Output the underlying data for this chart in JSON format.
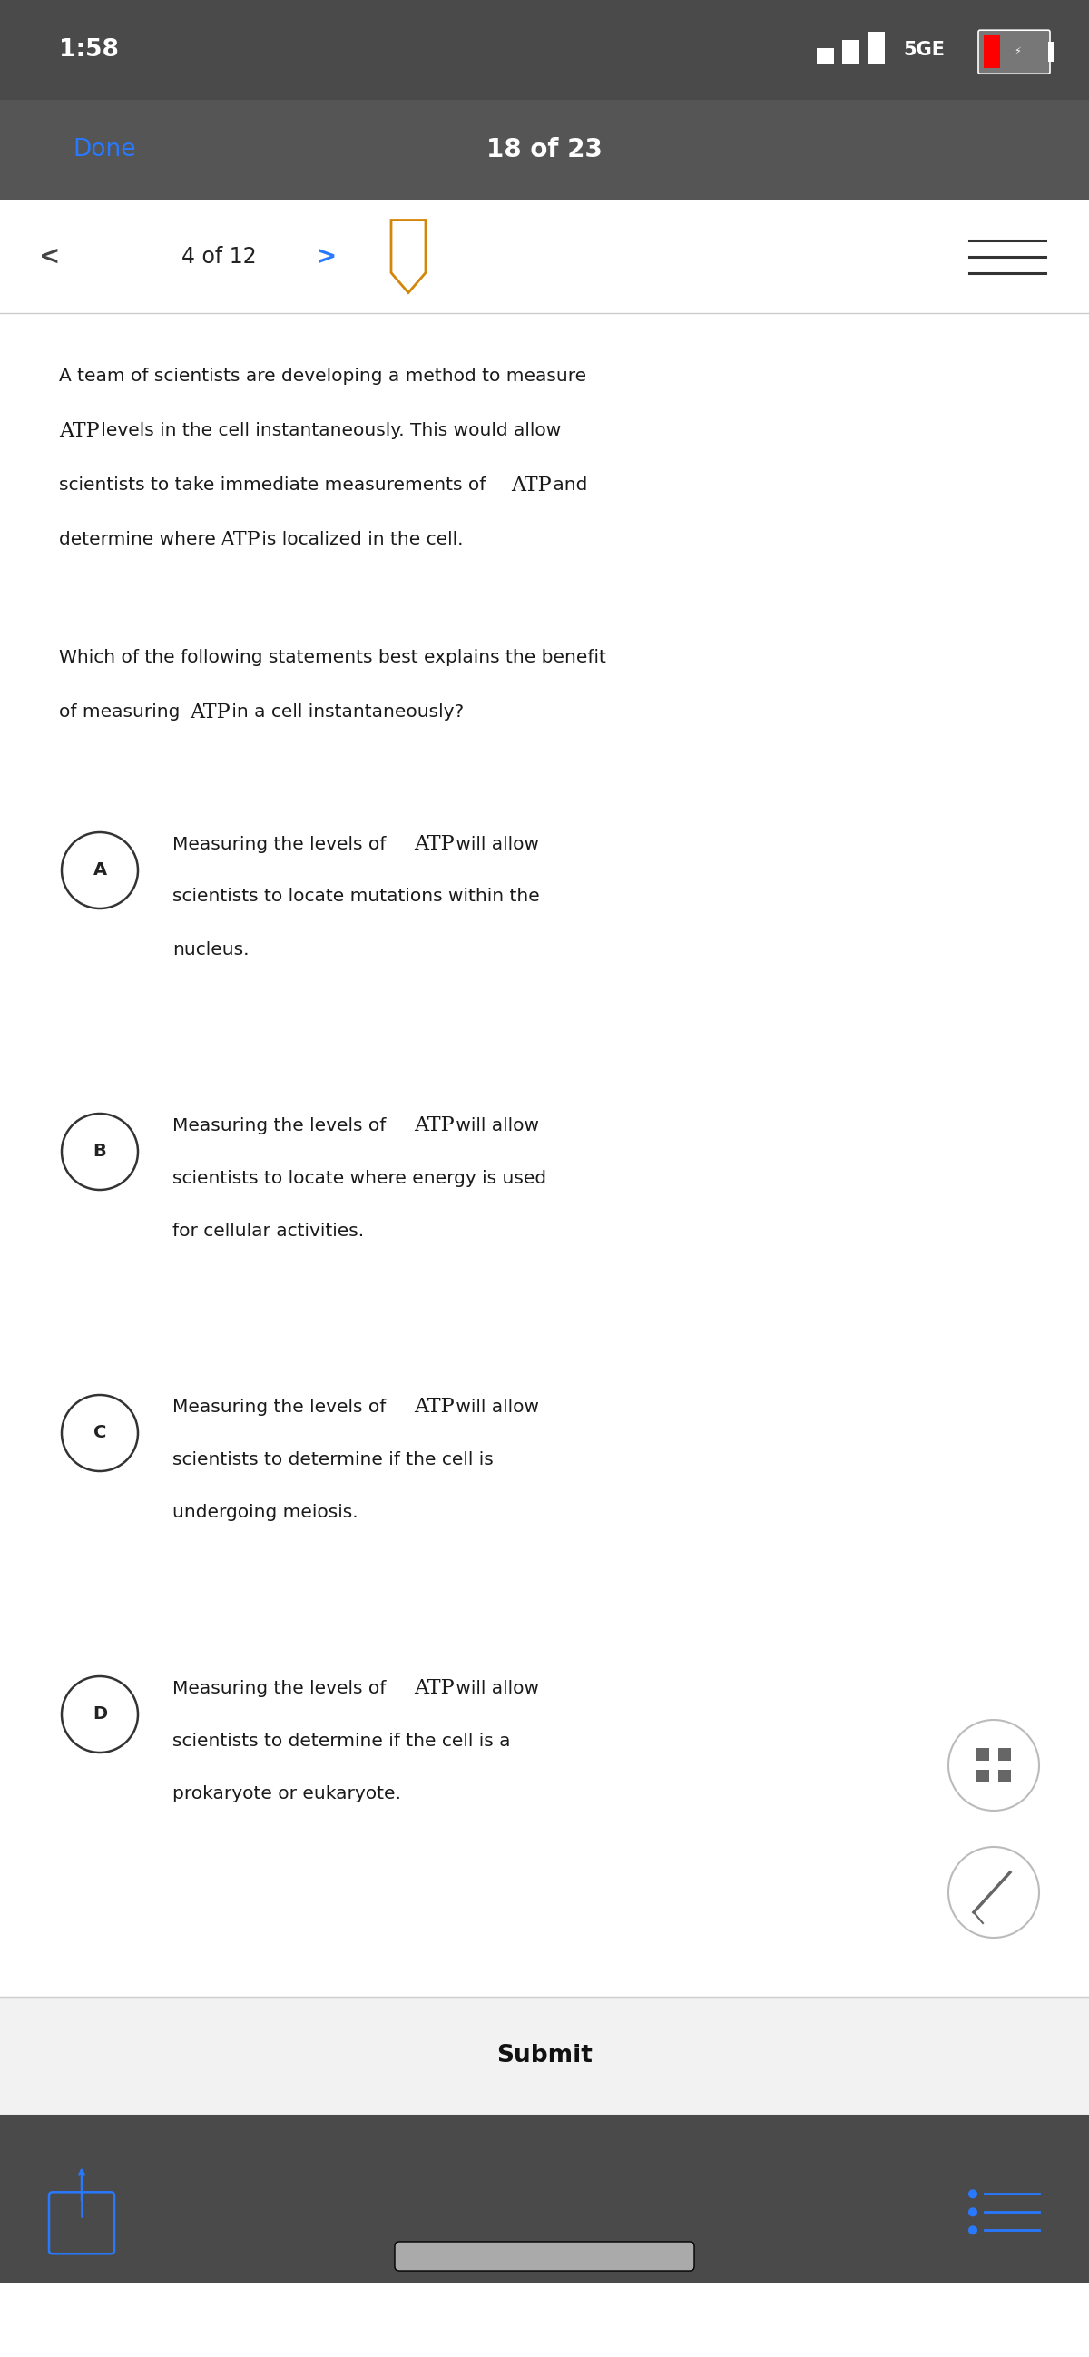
{
  "status_bar_bg": "#4a4a4a",
  "nav_bar_bg": "#555555",
  "done_text": "Done",
  "done_color": "#2979ff",
  "nav_title": "18 of 23",
  "toolbar_page": "4 of 12",
  "passage_lines": [
    "A team of scientists are developing a method to measure",
    "ATP levels in the cell instantaneously. This would allow",
    "scientists to take immediate measurements of ATP and",
    "determine where ATP is localized in the cell."
  ],
  "question_lines": [
    "Which of the following statements best explains the benefit",
    "of measuring ATP in a cell instantaneously?"
  ],
  "options": [
    {
      "label": "A",
      "lines": [
        "Measuring the levels of ATP will allow",
        "scientists to locate mutations within the",
        "nucleus."
      ]
    },
    {
      "label": "B",
      "lines": [
        "Measuring the levels of ATP will allow",
        "scientists to locate where energy is used",
        "for cellular activities."
      ]
    },
    {
      "label": "C",
      "lines": [
        "Measuring the levels of ATP will allow",
        "scientists to determine if the cell is",
        "undergoing meiosis."
      ]
    },
    {
      "label": "D",
      "lines": [
        "Measuring the levels of ATP will allow",
        "scientists to determine if the cell is a",
        "prokaryote or eukaryote."
      ]
    }
  ],
  "submit_text": "Submit",
  "bottom_bar_bg": "#4a4a4a",
  "text_color": "#1a1a1a",
  "separator_color": "#cccccc",
  "bookmark_color": "#d4860a",
  "share_icon_color": "#2979ff",
  "list_icon_color": "#2979ff",
  "circle_edge_color": "#333333",
  "white": "#ffffff",
  "fs_status": 16,
  "fs_nav": 17,
  "fs_done": 16,
  "fs_toolbar": 15,
  "fs_passage": 14.5,
  "fs_atp": 16,
  "fs_option_label": 14,
  "fs_option_text": 14,
  "fs_submit": 17
}
